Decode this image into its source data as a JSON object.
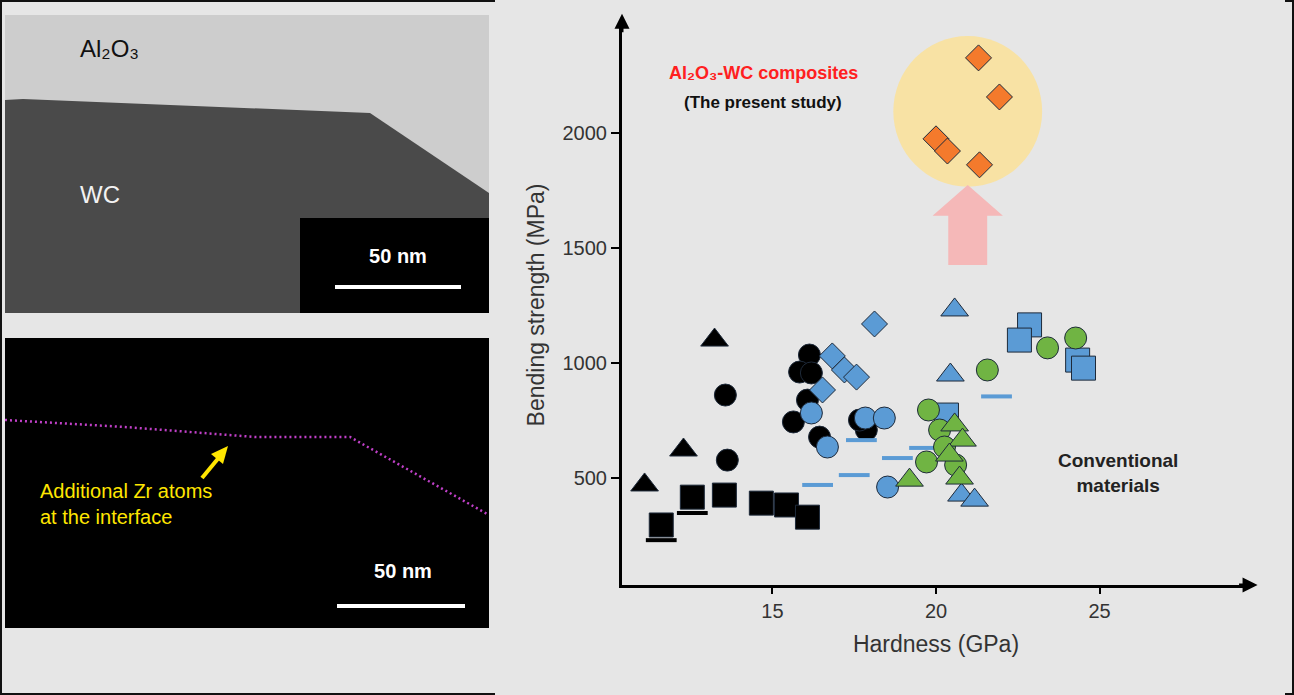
{
  "panels": {
    "tem": {
      "labels": [
        "Al₂O₃",
        "WC"
      ],
      "scale_bar": "50 nm"
    },
    "eds": {
      "annotation": [
        "Additional Zr atoms",
        "at the interface"
      ],
      "scale_bar": "50 nm"
    }
  },
  "chart_data": {
    "type": "scatter",
    "xlabel": "Hardness (GPa)",
    "ylabel": "Bending strength (MPa)",
    "xlim": [
      10.4,
      29.6
    ],
    "ylim": [
      35,
      2470
    ],
    "xticks": [
      15,
      20,
      25
    ],
    "yticks": [
      500,
      1000,
      1500,
      2000
    ],
    "grid": false,
    "annotations": [
      {
        "text": [
          "Al₂O₃-WC composites"
        ],
        "color": "#ff2020"
      },
      {
        "text": [
          "(The present study)"
        ],
        "color": "#111111"
      },
      {
        "text": [
          "Conventional",
          "materials"
        ],
        "color": "#222222"
      }
    ],
    "series": [
      {
        "color": "#000000",
        "marker": "triangle-up",
        "x": [
          11.09,
          12.28,
          13.23
        ],
        "values": [
          470,
          622,
          1100
        ]
      },
      {
        "color": "#000000",
        "marker": "circle",
        "x": [
          13.56,
          13.62,
          16.13,
          15.83,
          16.19,
          16.07,
          15.64,
          16.44,
          17.87,
          17.66
        ],
        "values": [
          861,
          578,
          1035,
          961,
          957,
          839,
          744,
          678,
          709,
          752
        ]
      },
      {
        "color": "#000000",
        "marker": "square",
        "x": [
          11.6,
          12.55,
          13.53,
          14.66,
          15.43,
          16.07
        ],
        "values": [
          296,
          417,
          426,
          391,
          383,
          330
        ]
      },
      {
        "color": "#000000",
        "marker": "line-ew",
        "x": [
          11.6,
          12.55
        ],
        "values": [
          230,
          348
        ]
      },
      {
        "color": "#5b9bd5",
        "marker": "diamond",
        "x": [
          18.12,
          16.83,
          17.2,
          17.57,
          16.53
        ],
        "values": [
          1170,
          1031,
          970,
          939,
          883
        ]
      },
      {
        "color": "#5b9bd5",
        "marker": "line-ew",
        "x": [
          16.38,
          17.72,
          17.5,
          18.82,
          19.65,
          21.85
        ],
        "values": [
          470,
          665,
          513,
          587,
          631,
          855
        ]
      },
      {
        "color": "#5b9bd5",
        "marker": "circle",
        "x": [
          16.19,
          16.68,
          17.84,
          18.42,
          18.52
        ],
        "values": [
          783,
          635,
          761,
          761,
          461
        ]
      },
      {
        "color": "#5b9bd5",
        "marker": "triangle-up",
        "x": [
          20.57,
          20.44,
          20.78,
          21.18
        ],
        "values": [
          1231,
          948,
          426,
          404
        ]
      },
      {
        "color": "#5b9bd5",
        "marker": "square",
        "x": [
          22.86,
          22.55,
          24.33,
          24.51,
          20.32
        ],
        "values": [
          1166,
          1100,
          1013,
          978,
          774
        ]
      },
      {
        "color": "#70b443",
        "marker": "circle",
        "x": [
          21.57,
          23.41,
          24.27,
          19.77,
          20.11,
          19.71,
          20.6,
          20.26
        ],
        "values": [
          970,
          1066,
          1109,
          796,
          709,
          570,
          557,
          635
        ]
      },
      {
        "color": "#70b443",
        "marker": "triangle-up",
        "x": [
          19.19,
          20.57,
          20.81,
          20.41,
          20.72
        ],
        "values": [
          491,
          731,
          665,
          600,
          500
        ]
      },
      {
        "color": "#f47a2c",
        "marker": "diamond",
        "x": [
          21.3,
          21.94,
          20.0,
          20.35,
          21.33
        ],
        "values": [
          2327,
          2157,
          1975,
          1922,
          1862
        ]
      }
    ]
  }
}
